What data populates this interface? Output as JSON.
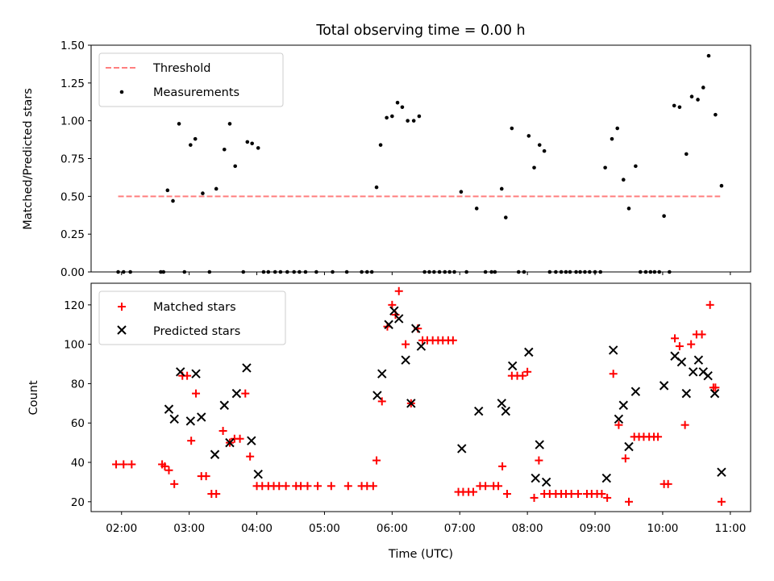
{
  "chart_data": [
    {
      "type": "scatter",
      "title": "Total observing time = 0.00 h",
      "xlabel": "",
      "ylabel": "Matched/Predicted stars",
      "ylim": [
        0,
        1.5
      ],
      "yticks": [
        "0.00",
        "0.25",
        "0.50",
        "0.75",
        "1.00",
        "1.25",
        "1.50"
      ],
      "legend": {
        "placement": "upper-left",
        "entries": [
          "Threshold",
          "Measurements"
        ]
      },
      "threshold": {
        "name": "Threshold",
        "value": 0.5,
        "x_start": 1.95,
        "x_end": 10.85,
        "color": "#ff7f7f",
        "style": "dashed"
      },
      "series": [
        {
          "name": "Measurements",
          "color": "#000000",
          "marker": "dot",
          "x": [
            1.95,
            2.03,
            2.13,
            2.58,
            2.62,
            2.68,
            2.76,
            2.85,
            2.93,
            3.02,
            3.09,
            3.2,
            3.3,
            3.4,
            3.52,
            3.6,
            3.68,
            3.8,
            3.86,
            3.93,
            4.02,
            4.1,
            4.17,
            4.27,
            4.35,
            4.45,
            4.55,
            4.63,
            4.72,
            4.88,
            5.12,
            5.33,
            5.55,
            5.63,
            5.7,
            5.77,
            5.83,
            5.92,
            6.0,
            6.08,
            6.15,
            6.23,
            6.32,
            6.4,
            6.48,
            6.55,
            6.62,
            6.7,
            6.78,
            6.85,
            6.92,
            7.02,
            7.1,
            7.25,
            7.38,
            7.47,
            7.52,
            7.62,
            7.68,
            7.77,
            7.87,
            7.95,
            8.02,
            8.1,
            8.18,
            8.25,
            8.33,
            8.42,
            8.5,
            8.57,
            8.63,
            8.72,
            8.78,
            8.85,
            8.92,
            9.0,
            9.08,
            9.15,
            9.25,
            9.33,
            9.42,
            9.5,
            9.6,
            9.67,
            9.75,
            9.82,
            9.88,
            9.95,
            10.02,
            10.1,
            10.17,
            10.25,
            10.35,
            10.43,
            10.52,
            10.6,
            10.68,
            10.78,
            10.87
          ],
          "y": [
            0.0,
            0.0,
            0.0,
            0.0,
            0.0,
            0.54,
            0.47,
            0.98,
            0.0,
            0.84,
            0.88,
            0.52,
            0.0,
            0.55,
            0.81,
            0.98,
            0.7,
            0.0,
            0.86,
            0.85,
            0.82,
            0.0,
            0.0,
            0.0,
            0.0,
            0.0,
            0.0,
            0.0,
            0.0,
            0.0,
            0.0,
            0.0,
            0.0,
            0.0,
            0.0,
            0.56,
            0.84,
            1.02,
            1.03,
            1.12,
            1.09,
            1.0,
            1.0,
            1.03,
            0.0,
            0.0,
            0.0,
            0.0,
            0.0,
            0.0,
            0.0,
            0.53,
            0.0,
            0.42,
            0.0,
            0.0,
            0.0,
            0.55,
            0.36,
            0.95,
            0.0,
            0.0,
            0.9,
            0.69,
            0.84,
            0.8,
            0.0,
            0.0,
            0.0,
            0.0,
            0.0,
            0.0,
            0.0,
            0.0,
            0.0,
            0.0,
            0.0,
            0.69,
            0.88,
            0.95,
            0.61,
            0.42,
            0.7,
            0.0,
            0.0,
            0.0,
            0.0,
            0.0,
            0.37,
            0.0,
            1.1,
            1.09,
            0.78,
            1.16,
            1.14,
            1.22,
            1.43,
            1.04,
            0.57
          ]
        }
      ]
    },
    {
      "type": "scatter",
      "title": "",
      "xlabel": "Time (UTC)",
      "ylabel": "Count",
      "ylim": [
        15,
        131
      ],
      "yticks": [
        "20",
        "40",
        "60",
        "80",
        "100",
        "120"
      ],
      "xlim": [
        1.55,
        11.3
      ],
      "xticks": [
        "02:00",
        "03:00",
        "04:00",
        "05:00",
        "06:00",
        "07:00",
        "08:00",
        "09:00",
        "10:00",
        "11:00"
      ],
      "legend": {
        "placement": "upper-left",
        "entries": [
          "Matched stars",
          "Predicted stars"
        ]
      },
      "series": [
        {
          "name": "Matched stars",
          "color": "#ff0000",
          "marker": "plus",
          "points": [
            [
              1.92,
              39
            ],
            [
              2.03,
              39
            ],
            [
              2.15,
              39
            ],
            [
              2.6,
              39
            ],
            [
              2.64,
              38
            ],
            [
              2.7,
              36
            ],
            [
              2.78,
              29
            ],
            [
              2.9,
              84
            ],
            [
              2.97,
              84
            ],
            [
              3.03,
              51
            ],
            [
              3.1,
              75
            ],
            [
              3.18,
              33
            ],
            [
              3.25,
              33
            ],
            [
              3.33,
              24
            ],
            [
              3.4,
              24
            ],
            [
              3.5,
              56
            ],
            [
              3.6,
              50
            ],
            [
              3.67,
              52
            ],
            [
              3.75,
              52
            ],
            [
              3.83,
              75
            ],
            [
              3.9,
              43
            ],
            [
              4.0,
              28
            ],
            [
              4.08,
              28
            ],
            [
              4.17,
              28
            ],
            [
              4.25,
              28
            ],
            [
              4.33,
              28
            ],
            [
              4.43,
              28
            ],
            [
              4.58,
              28
            ],
            [
              4.65,
              28
            ],
            [
              4.75,
              28
            ],
            [
              4.9,
              28
            ],
            [
              5.1,
              28
            ],
            [
              5.35,
              28
            ],
            [
              5.55,
              28
            ],
            [
              5.63,
              28
            ],
            [
              5.72,
              28
            ],
            [
              5.77,
              41
            ],
            [
              5.85,
              71
            ],
            [
              5.93,
              109
            ],
            [
              6.0,
              120
            ],
            [
              6.05,
              115
            ],
            [
              6.1,
              127
            ],
            [
              6.2,
              100
            ],
            [
              6.28,
              70
            ],
            [
              6.38,
              108
            ],
            [
              6.45,
              102
            ],
            [
              6.52,
              102
            ],
            [
              6.6,
              102
            ],
            [
              6.68,
              102
            ],
            [
              6.75,
              102
            ],
            [
              6.83,
              102
            ],
            [
              6.9,
              102
            ],
            [
              6.98,
              25
            ],
            [
              7.05,
              25
            ],
            [
              7.13,
              25
            ],
            [
              7.2,
              25
            ],
            [
              7.3,
              28
            ],
            [
              7.38,
              28
            ],
            [
              7.5,
              28
            ],
            [
              7.57,
              28
            ],
            [
              7.63,
              38
            ],
            [
              7.7,
              24
            ],
            [
              7.77,
              84
            ],
            [
              7.85,
              84
            ],
            [
              7.93,
              84
            ],
            [
              8.0,
              86
            ],
            [
              8.1,
              22
            ],
            [
              8.17,
              41
            ],
            [
              8.25,
              24
            ],
            [
              8.33,
              24
            ],
            [
              8.42,
              24
            ],
            [
              8.5,
              24
            ],
            [
              8.57,
              24
            ],
            [
              8.65,
              24
            ],
            [
              8.75,
              24
            ],
            [
              8.88,
              24
            ],
            [
              8.95,
              24
            ],
            [
              9.03,
              24
            ],
            [
              9.1,
              24
            ],
            [
              9.18,
              22
            ],
            [
              9.27,
              85
            ],
            [
              9.35,
              59
            ],
            [
              9.45,
              42
            ],
            [
              9.5,
              20
            ],
            [
              9.58,
              53
            ],
            [
              9.65,
              53
            ],
            [
              9.72,
              53
            ],
            [
              9.8,
              53
            ],
            [
              9.87,
              53
            ],
            [
              9.93,
              53
            ],
            [
              10.02,
              29
            ],
            [
              10.08,
              29
            ],
            [
              10.18,
              103
            ],
            [
              10.25,
              99
            ],
            [
              10.33,
              59
            ],
            [
              10.42,
              100
            ],
            [
              10.5,
              105
            ],
            [
              10.58,
              105
            ],
            [
              10.7,
              120
            ],
            [
              10.75,
              78
            ],
            [
              10.78,
              78
            ],
            [
              10.87,
              20
            ]
          ]
        },
        {
          "name": "Predicted stars",
          "color": "#000000",
          "marker": "x",
          "points": [
            [
              2.7,
              67
            ],
            [
              2.78,
              62
            ],
            [
              2.87,
              86
            ],
            [
              3.02,
              61
            ],
            [
              3.1,
              85
            ],
            [
              3.18,
              63
            ],
            [
              3.38,
              44
            ],
            [
              3.52,
              69
            ],
            [
              3.6,
              50
            ],
            [
              3.7,
              75
            ],
            [
              3.85,
              88
            ],
            [
              3.92,
              51
            ],
            [
              4.02,
              34
            ],
            [
              5.78,
              74
            ],
            [
              5.85,
              85
            ],
            [
              5.95,
              110
            ],
            [
              6.03,
              117
            ],
            [
              6.1,
              113
            ],
            [
              6.2,
              92
            ],
            [
              6.28,
              70
            ],
            [
              6.35,
              108
            ],
            [
              6.43,
              99
            ],
            [
              7.03,
              47
            ],
            [
              7.28,
              66
            ],
            [
              7.62,
              70
            ],
            [
              7.68,
              66
            ],
            [
              7.78,
              89
            ],
            [
              8.02,
              96
            ],
            [
              8.12,
              32
            ],
            [
              8.18,
              49
            ],
            [
              8.28,
              30
            ],
            [
              9.17,
              32
            ],
            [
              9.27,
              97
            ],
            [
              9.35,
              62
            ],
            [
              9.42,
              69
            ],
            [
              9.5,
              48
            ],
            [
              9.6,
              76
            ],
            [
              10.02,
              79
            ],
            [
              10.18,
              94
            ],
            [
              10.28,
              91
            ],
            [
              10.35,
              75
            ],
            [
              10.45,
              86
            ],
            [
              10.53,
              92
            ],
            [
              10.6,
              86
            ],
            [
              10.67,
              84
            ],
            [
              10.77,
              75
            ],
            [
              10.87,
              35
            ]
          ]
        }
      ]
    }
  ]
}
